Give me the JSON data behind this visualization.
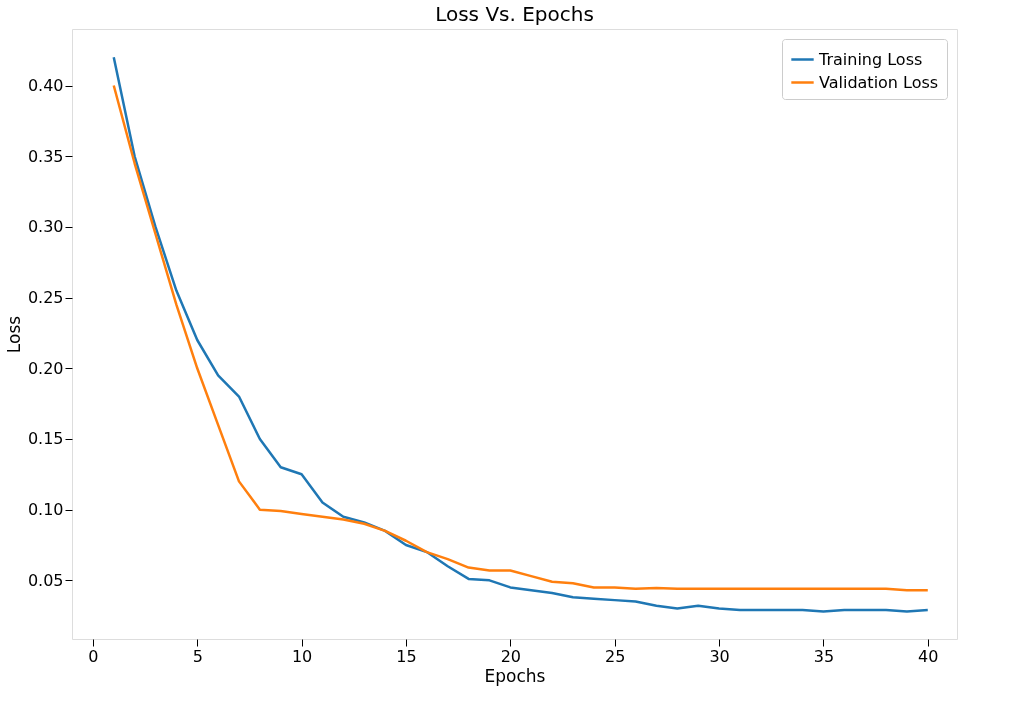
{
  "chart_data": {
    "type": "line",
    "title": "Loss Vs. Epochs",
    "xlabel": "Epochs",
    "ylabel": "Loss",
    "x": [
      1,
      2,
      3,
      4,
      5,
      6,
      7,
      8,
      9,
      10,
      11,
      12,
      13,
      14,
      15,
      16,
      17,
      18,
      19,
      20,
      21,
      22,
      23,
      24,
      25,
      26,
      27,
      28,
      29,
      30,
      31,
      32,
      33,
      34,
      35,
      36,
      37,
      38,
      39,
      40
    ],
    "series": [
      {
        "name": "Training Loss",
        "color": "#1f77b4",
        "values": [
          0.42,
          0.35,
          0.3,
          0.255,
          0.22,
          0.195,
          0.18,
          0.15,
          0.13,
          0.125,
          0.105,
          0.095,
          0.091,
          0.085,
          0.075,
          0.07,
          0.06,
          0.051,
          0.05,
          0.045,
          0.043,
          0.041,
          0.038,
          0.037,
          0.036,
          0.035,
          0.032,
          0.03,
          0.032,
          0.03,
          0.029,
          0.029,
          0.029,
          0.029,
          0.028,
          0.029,
          0.029,
          0.029,
          0.028,
          0.029
        ]
      },
      {
        "name": "Validation Loss",
        "color": "#ff7f0e",
        "values": [
          0.4,
          0.345,
          0.295,
          0.245,
          0.2,
          0.16,
          0.12,
          0.1,
          0.099,
          0.097,
          0.095,
          0.093,
          0.09,
          0.085,
          0.078,
          0.07,
          0.065,
          0.059,
          0.057,
          0.057,
          0.053,
          0.049,
          0.048,
          0.045,
          0.045,
          0.044,
          0.0445,
          0.044,
          0.044,
          0.044,
          0.044,
          0.044,
          0.044,
          0.044,
          0.044,
          0.044,
          0.044,
          0.044,
          0.043,
          0.043
        ]
      }
    ],
    "xlim": [
      -1.0,
      41.4
    ],
    "xticks": [
      0,
      5,
      10,
      15,
      20,
      25,
      30,
      35,
      40
    ],
    "ylim": [
      0.0085,
      0.44
    ],
    "yticks": [
      {
        "value": 0.05,
        "label": "0.05"
      },
      {
        "value": 0.1,
        "label": "0.10"
      },
      {
        "value": 0.15,
        "label": "0.15"
      },
      {
        "value": 0.2,
        "label": "0.20"
      },
      {
        "value": 0.25,
        "label": "0.25"
      },
      {
        "value": 0.3,
        "label": "0.30"
      },
      {
        "value": 0.35,
        "label": "0.35"
      },
      {
        "value": 0.4,
        "label": "0.40"
      }
    ],
    "grid": false,
    "legend": "top right",
    "marker": "none",
    "line_style": "solid"
  }
}
